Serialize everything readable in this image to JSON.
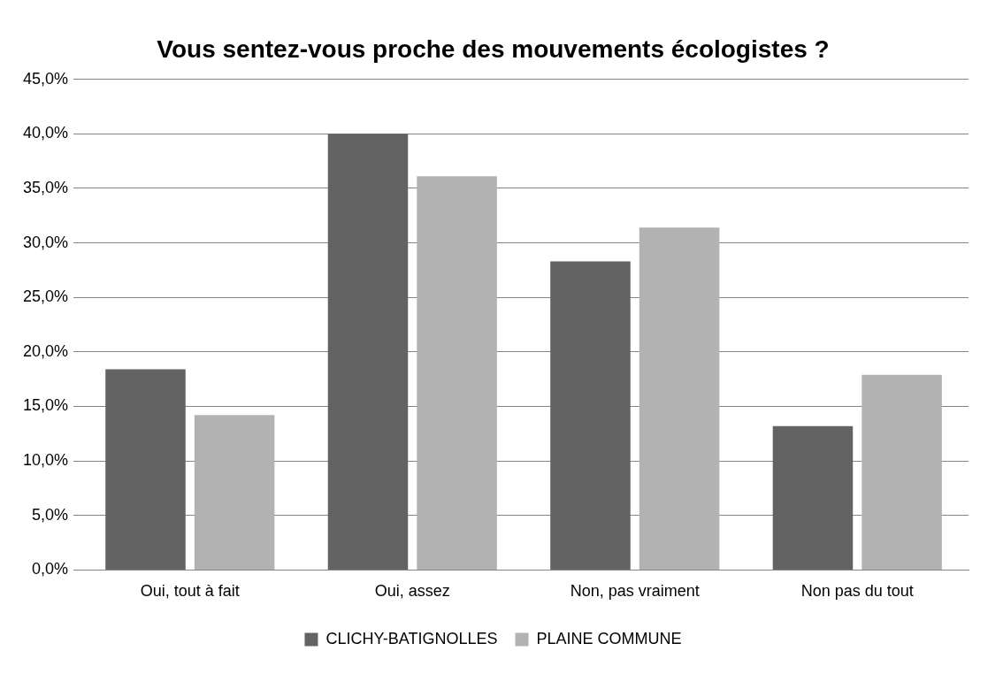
{
  "chart_data": {
    "type": "bar",
    "title": "Vous sentez-vous proche des mouvements écologistes ?",
    "categories": [
      "Oui, tout à fait",
      "Oui, assez",
      "Non, pas vraiment",
      "Non pas du tout"
    ],
    "series": [
      {
        "name": "CLICHY-BATIGNOLLES",
        "color": "#636363",
        "values": [
          18.4,
          40.0,
          28.3,
          13.2
        ]
      },
      {
        "name": "PLAINE COMMUNE",
        "color": "#b2b2b2",
        "values": [
          14.2,
          36.1,
          31.4,
          17.9
        ]
      }
    ],
    "ylim": [
      0,
      45
    ],
    "yticks": [
      {
        "value": 0,
        "label": "0,0%"
      },
      {
        "value": 5,
        "label": "5,0%"
      },
      {
        "value": 10,
        "label": "10,0%"
      },
      {
        "value": 15,
        "label": "15,0%"
      },
      {
        "value": 20,
        "label": "20,0%"
      },
      {
        "value": 25,
        "label": "25,0%"
      },
      {
        "value": 30,
        "label": "30,0%"
      },
      {
        "value": 35,
        "label": "35,0%"
      },
      {
        "value": 40,
        "label": "40,0%"
      },
      {
        "value": 45,
        "label": "45,0%"
      }
    ],
    "grid": "y",
    "legend": "bottom"
  }
}
